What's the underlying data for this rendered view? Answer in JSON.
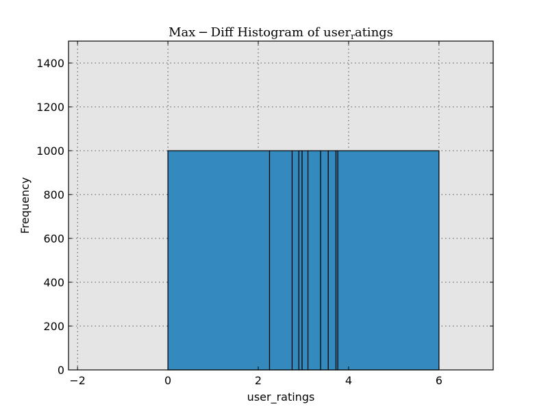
{
  "chart_data": {
    "type": "bar",
    "title": "Max − Diff Histogram of user",
    "title_subscript": "r",
    "title_suffix": "atings",
    "xlabel": "user_ratings",
    "ylabel": "Frequency",
    "xlim": [
      -2.2,
      7.2
    ],
    "ylim": [
      0,
      1500
    ],
    "xticks": [
      -2,
      0,
      2,
      4,
      6
    ],
    "xtick_labels": [
      "−2",
      "0",
      "2",
      "4",
      "6"
    ],
    "yticks": [
      0,
      200,
      400,
      600,
      800,
      1000,
      1200,
      1400
    ],
    "ytick_labels": [
      "0",
      "200",
      "400",
      "600",
      "800",
      "1000",
      "1200",
      "1400"
    ],
    "grid": true,
    "bin_edges": [
      0,
      2.25,
      2.75,
      2.9,
      2.97,
      3.1,
      3.38,
      3.55,
      3.72,
      3.76,
      6.0
    ],
    "values": [
      1000,
      1000,
      1000,
      1000,
      1000,
      1000,
      1000,
      1000,
      1000,
      1000
    ],
    "colors": {
      "bar": "#348abd",
      "background": "#e5e5e5"
    }
  }
}
